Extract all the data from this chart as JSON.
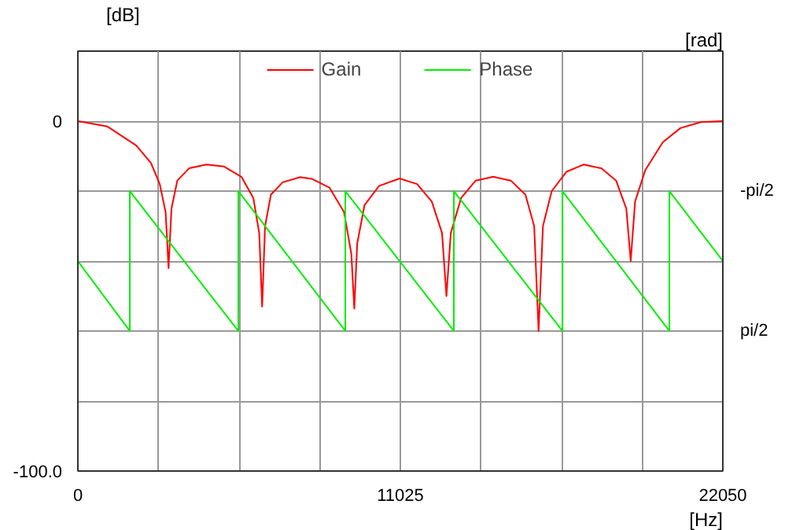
{
  "chart_data": {
    "type": "line",
    "xlabel": "[Hz]",
    "ylabel": "[dB]",
    "y2label": "[rad]",
    "xlim": [
      0,
      22050
    ],
    "xticks": [
      0,
      {
        "value": 2756.25,
        "label": null
      },
      {
        "value": 5512.5,
        "label": null
      },
      {
        "value": 8268.75,
        "label": null
      },
      11025,
      {
        "value": 13781.25,
        "label": null
      },
      {
        "value": 16537.5,
        "label": null
      },
      {
        "value": 19293.75,
        "label": null
      },
      22050
    ],
    "ylim": [
      -100,
      20
    ],
    "yticks": [
      {
        "value": 0,
        "label": "0"
      },
      {
        "value": -20,
        "label": null
      },
      {
        "value": -40,
        "label": null
      },
      {
        "value": -60,
        "label": null
      },
      {
        "value": -80,
        "label": null
      },
      {
        "value": -100,
        "label": "-100.0"
      }
    ],
    "y2lim": [
      4.712,
      -4.712
    ],
    "y2ticks": [
      {
        "value": -1.5708,
        "label": "-pi/2"
      },
      {
        "value": 1.5708,
        "label": "pi/2"
      }
    ],
    "grid": true,
    "legend": "top",
    "line_style": "solid",
    "marker": "none",
    "series": [
      {
        "name": "Gain",
        "color": "#ff0000",
        "x": [
          0,
          1000,
          2000,
          2500,
          2800,
          3000,
          3100,
          3200,
          3400,
          3800,
          4400,
          5000,
          5600,
          6000,
          6200,
          6300,
          6400,
          6600,
          7000,
          7600,
          8000,
          8600,
          9100,
          9350,
          9450,
          9550,
          9800,
          10300,
          11000,
          11600,
          12100,
          12450,
          12600,
          12750,
          13100,
          13600,
          14200,
          14800,
          15300,
          15600,
          15750,
          15900,
          16200,
          16700,
          17300,
          17900,
          18400,
          18750,
          18900,
          19050,
          19400,
          20000,
          20600,
          21300,
          22050
        ],
        "values": [
          0,
          -1.5,
          -7,
          -12,
          -18,
          -26,
          -42,
          -25,
          -17,
          -13.5,
          -12.4,
          -13,
          -16,
          -22,
          -32,
          -53,
          -30,
          -21,
          -17.5,
          -16,
          -16.5,
          -19,
          -26,
          -38,
          -53.6,
          -35,
          -24,
          -18.5,
          -16.4,
          -18,
          -23,
          -32,
          -50,
          -32,
          -22,
          -17,
          -15.9,
          -17,
          -21,
          -30,
          -60,
          -30,
          -20,
          -14.5,
          -12.4,
          -13.5,
          -17,
          -25,
          -40,
          -23,
          -14,
          -6,
          -2,
          -0.3,
          0
        ]
      },
      {
        "name": "Phase",
        "color": "#00ee00",
        "axis": "y2",
        "x": [
          0,
          1775,
          1775,
          5486,
          5486,
          9143,
          9143,
          12854,
          12854,
          16566,
          16566,
          20223,
          20223,
          22050
        ],
        "values": [
          0,
          1.57,
          -1.57,
          1.57,
          -1.57,
          1.57,
          -1.57,
          1.57,
          -1.57,
          1.57,
          -1.57,
          1.57,
          -1.57,
          0
        ]
      }
    ]
  }
}
